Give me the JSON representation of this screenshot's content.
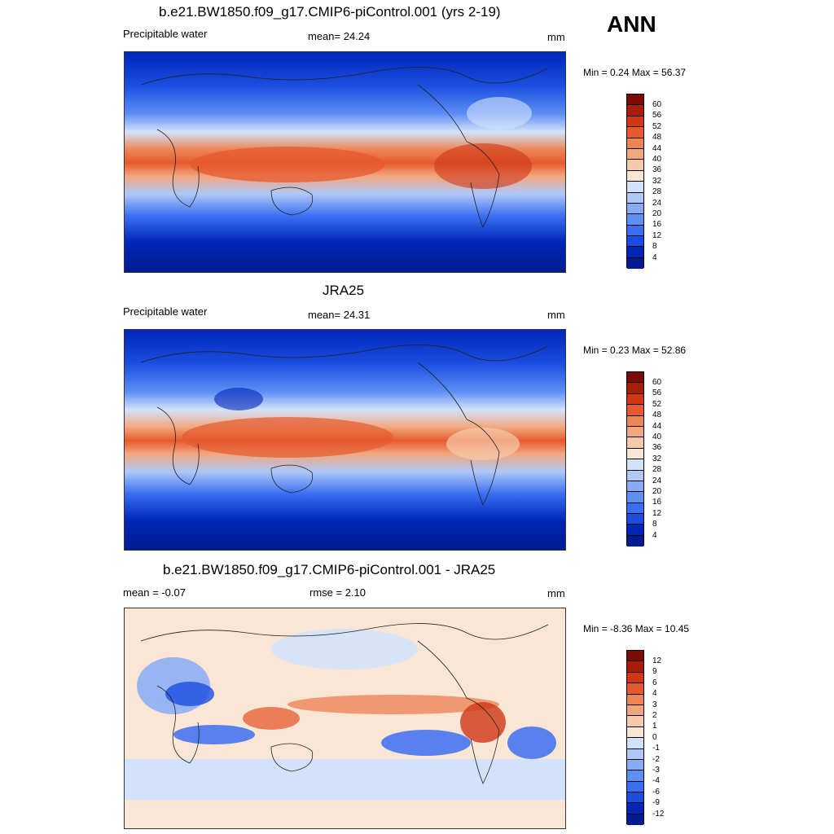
{
  "season": "ANN",
  "units_label": "mm",
  "colors": {
    "seq_scale": [
      "#001b8f",
      "#0026b8",
      "#1a4ee0",
      "#3b6ff2",
      "#5e8ff5",
      "#86acf7",
      "#aec8f8",
      "#d3e2fb",
      "#fbe6d6",
      "#f7c9ab",
      "#f2a77f",
      "#ed8557",
      "#e65a2d",
      "#cf3715",
      "#a81d08",
      "#7c0b03"
    ],
    "diff_scale": [
      "#001b8f",
      "#0026b8",
      "#1a4ee0",
      "#3b6ff2",
      "#5e8ff5",
      "#86acf7",
      "#aec8f8",
      "#d3e2fb",
      "#fbe6d6",
      "#f7c9ab",
      "#f2a77f",
      "#ed8557",
      "#e65a2d",
      "#cf3715",
      "#a81d08",
      "#7c0b03"
    ]
  },
  "panels": [
    {
      "title": "b.e21.BW1850.f09_g17.CMIP6-piControl.001 (yrs 2-19)",
      "left_label": "Precipitable water",
      "center_label": "mean=  24.24",
      "right_label": "mm",
      "minmax": "Min =   0.24 Max =  56.37",
      "colorbar_labels": [
        "60",
        "56",
        "52",
        "48",
        "44",
        "40",
        "36",
        "32",
        "28",
        "24",
        "20",
        "16",
        "12",
        "8",
        "4"
      ]
    },
    {
      "title": "JRA25",
      "left_label": "Precipitable water",
      "center_label": "mean=  24.31",
      "right_label": "mm",
      "minmax": "Min =   0.23 Max =  52.86",
      "colorbar_labels": [
        "60",
        "56",
        "52",
        "48",
        "44",
        "40",
        "36",
        "32",
        "28",
        "24",
        "20",
        "16",
        "12",
        "8",
        "4"
      ]
    },
    {
      "title": "b.e21.BW1850.f09_g17.CMIP6-piControl.001 - JRA25",
      "left_label": "mean =  -0.07",
      "center_label": "rmse =   2.10",
      "right_label": "mm",
      "minmax": "Min =  -8.36 Max =  10.45",
      "colorbar_labels": [
        "12",
        "9",
        "6",
        "4",
        "3",
        "2",
        "1",
        "0",
        "-1",
        "-2",
        "-3",
        "-4",
        "-6",
        "-9",
        "-12"
      ]
    }
  ]
}
